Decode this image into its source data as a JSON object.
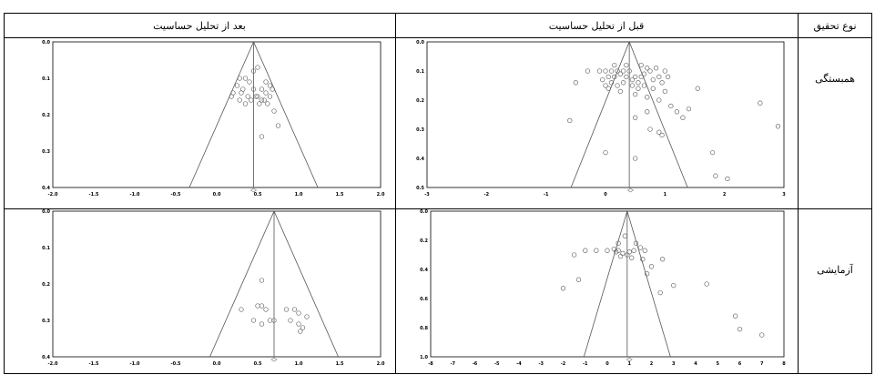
{
  "headers": {
    "type": "نوع تحقیق",
    "before": "قبل از تحلیل حساسیت",
    "after": "بعد از تحلیل حساسیت"
  },
  "rows": [
    {
      "label": "همبستگی"
    },
    {
      "label": "آزمایشی"
    }
  ],
  "chart_data": [
    {
      "id": "corr-before",
      "type": "scatter",
      "funnel_center": 0.4,
      "summary_x": 0.42,
      "xlim": [
        -3,
        3
      ],
      "ylim": [
        0.0,
        0.5
      ],
      "xticks": [
        "-3",
        "-2",
        "-1",
        "0",
        "1",
        "2",
        "3"
      ],
      "yticks": [
        "0.0",
        "0.1",
        "0.2",
        "0.3",
        "0.4",
        "0.5"
      ],
      "y_reversed": true,
      "points": [
        [
          -0.3,
          0.1
        ],
        [
          -0.1,
          0.1
        ],
        [
          0.0,
          0.1
        ],
        [
          0.05,
          0.12
        ],
        [
          0.1,
          0.1
        ],
        [
          0.15,
          0.12
        ],
        [
          0.2,
          0.1
        ],
        [
          0.25,
          0.11
        ],
        [
          0.3,
          0.1
        ],
        [
          0.35,
          0.12
        ],
        [
          0.4,
          0.1
        ],
        [
          0.45,
          0.13
        ],
        [
          0.5,
          0.12
        ],
        [
          0.55,
          0.14
        ],
        [
          0.6,
          0.12
        ],
        [
          0.65,
          0.11
        ],
        [
          0.7,
          0.09
        ],
        [
          0.75,
          0.1
        ],
        [
          0.8,
          0.13
        ],
        [
          0.85,
          0.09
        ],
        [
          0.9,
          0.12
        ],
        [
          0.95,
          0.14
        ],
        [
          1.0,
          0.1
        ],
        [
          1.05,
          0.12
        ],
        [
          0.1,
          0.14
        ],
        [
          0.2,
          0.15
        ],
        [
          0.3,
          0.14
        ],
        [
          0.45,
          0.15
        ],
        [
          0.55,
          0.16
        ],
        [
          0.65,
          0.15
        ],
        [
          0.8,
          0.16
        ],
        [
          1.0,
          0.17
        ],
        [
          0.0,
          0.15
        ],
        [
          -0.05,
          0.13
        ],
        [
          0.25,
          0.17
        ],
        [
          0.5,
          0.18
        ],
        [
          0.7,
          0.19
        ],
        [
          0.9,
          0.2
        ],
        [
          1.1,
          0.22
        ],
        [
          0.35,
          0.08
        ],
        [
          0.6,
          0.08
        ],
        [
          0.15,
          0.08
        ],
        [
          -0.5,
          0.14
        ],
        [
          0.05,
          0.16
        ],
        [
          1.2,
          0.24
        ],
        [
          1.4,
          0.23
        ],
        [
          1.55,
          0.16
        ],
        [
          2.6,
          0.21
        ],
        [
          2.9,
          0.29
        ],
        [
          0.5,
          0.26
        ],
        [
          0.7,
          0.24
        ],
        [
          1.3,
          0.26
        ],
        [
          -0.6,
          0.27
        ],
        [
          0.75,
          0.3
        ],
        [
          0.9,
          0.31
        ],
        [
          0.95,
          0.32
        ],
        [
          1.8,
          0.38
        ],
        [
          0.0,
          0.38
        ],
        [
          0.5,
          0.4
        ],
        [
          1.85,
          0.46
        ],
        [
          2.05,
          0.47
        ]
      ]
    },
    {
      "id": "corr-after",
      "type": "scatter",
      "funnel_center": 0.45,
      "summary_x": 0.45,
      "xlim": [
        -2.0,
        2.0
      ],
      "ylim": [
        0.0,
        0.4
      ],
      "xticks": [
        "-2.0",
        "-1.5",
        "-1.0",
        "-0.5",
        "0.0",
        "0.5",
        "1.0",
        "1.5",
        "2.0"
      ],
      "yticks": [
        "0.0",
        "0.1",
        "0.2",
        "0.3",
        "0.4"
      ],
      "y_reversed": true,
      "points": [
        [
          0.5,
          0.07
        ],
        [
          0.28,
          0.1
        ],
        [
          0.35,
          0.1
        ],
        [
          0.4,
          0.11
        ],
        [
          0.6,
          0.11
        ],
        [
          0.65,
          0.12
        ],
        [
          0.25,
          0.12
        ],
        [
          0.32,
          0.13
        ],
        [
          0.45,
          0.13
        ],
        [
          0.55,
          0.13
        ],
        [
          0.6,
          0.14
        ],
        [
          0.68,
          0.13
        ],
        [
          0.2,
          0.14
        ],
        [
          0.3,
          0.14
        ],
        [
          0.38,
          0.15
        ],
        [
          0.5,
          0.15
        ],
        [
          0.58,
          0.16
        ],
        [
          0.65,
          0.15
        ],
        [
          0.18,
          0.15
        ],
        [
          0.28,
          0.16
        ],
        [
          0.42,
          0.16
        ],
        [
          0.48,
          0.15
        ],
        [
          0.52,
          0.17
        ],
        [
          0.62,
          0.17
        ],
        [
          0.35,
          0.17
        ],
        [
          0.55,
          0.16
        ],
        [
          0.45,
          0.08
        ],
        [
          0.7,
          0.19
        ],
        [
          0.75,
          0.23
        ],
        [
          0.55,
          0.26
        ]
      ]
    },
    {
      "id": "exp-before",
      "type": "scatter",
      "funnel_center": 0.9,
      "summary_x": 1.0,
      "xlim": [
        -8,
        8
      ],
      "ylim": [
        0.0,
        1.0
      ],
      "xticks": [
        "-8",
        "-7",
        "-6",
        "-5",
        "-4",
        "-3",
        "-2",
        "-1",
        "0",
        "1",
        "2",
        "3",
        "4",
        "5",
        "6",
        "7",
        "8"
      ],
      "yticks": [
        "0.0",
        "0.2",
        "0.4",
        "0.6",
        "0.8",
        "1.0"
      ],
      "y_reversed": true,
      "points": [
        [
          0.8,
          0.17
        ],
        [
          0.5,
          0.22
        ],
        [
          1.3,
          0.22
        ],
        [
          -1.0,
          0.27
        ],
        [
          -0.5,
          0.27
        ],
        [
          0.0,
          0.27
        ],
        [
          0.3,
          0.26
        ],
        [
          0.4,
          0.28
        ],
        [
          0.5,
          0.27
        ],
        [
          0.7,
          0.29
        ],
        [
          0.9,
          0.3
        ],
        [
          1.0,
          0.28
        ],
        [
          1.2,
          0.27
        ],
        [
          1.5,
          0.25
        ],
        [
          1.7,
          0.27
        ],
        [
          -1.5,
          0.3
        ],
        [
          0.6,
          0.31
        ],
        [
          1.1,
          0.32
        ],
        [
          1.6,
          0.33
        ],
        [
          2.5,
          0.33
        ],
        [
          2.0,
          0.38
        ],
        [
          1.8,
          0.43
        ],
        [
          -1.3,
          0.47
        ],
        [
          -2.0,
          0.53
        ],
        [
          3.0,
          0.51
        ],
        [
          4.5,
          0.5
        ],
        [
          2.4,
          0.56
        ],
        [
          5.8,
          0.72
        ],
        [
          6.0,
          0.81
        ],
        [
          7.0,
          0.85
        ]
      ]
    },
    {
      "id": "exp-after",
      "type": "scatter",
      "funnel_center": 0.7,
      "summary_x": 0.7,
      "xlim": [
        -2.0,
        2.0
      ],
      "ylim": [
        0.0,
        0.4
      ],
      "xticks": [
        "-2.0",
        "-1.5",
        "-1.0",
        "-0.5",
        "0.0",
        "0.5",
        "1.0",
        "1.5",
        "2.0"
      ],
      "yticks": [
        "0.0",
        "0.1",
        "0.2",
        "0.3",
        "0.4"
      ],
      "y_reversed": true,
      "points": [
        [
          0.55,
          0.19
        ],
        [
          0.3,
          0.27
        ],
        [
          0.5,
          0.26
        ],
        [
          0.55,
          0.26
        ],
        [
          0.6,
          0.27
        ],
        [
          0.85,
          0.27
        ],
        [
          0.95,
          0.27
        ],
        [
          1.0,
          0.28
        ],
        [
          1.1,
          0.29
        ],
        [
          0.45,
          0.3
        ],
        [
          0.65,
          0.3
        ],
        [
          0.7,
          0.3
        ],
        [
          0.9,
          0.3
        ],
        [
          1.0,
          0.31
        ],
        [
          0.55,
          0.31
        ],
        [
          1.05,
          0.32
        ],
        [
          1.02,
          0.33
        ]
      ]
    }
  ]
}
